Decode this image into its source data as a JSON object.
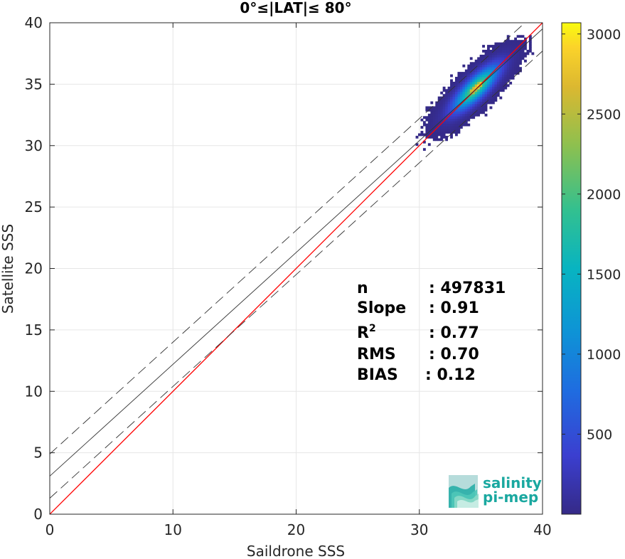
{
  "chart_data": {
    "type": "heatmap",
    "title": "0°≤|LAT|≤ 80°",
    "xlabel": "Saildrone SSS",
    "ylabel": "Satellite SSS",
    "xlim": [
      0,
      40
    ],
    "ylim": [
      0,
      40
    ],
    "xticks": [
      "0",
      "10",
      "20",
      "30",
      "40"
    ],
    "yticks": [
      "0",
      "5",
      "10",
      "15",
      "20",
      "25",
      "30",
      "35",
      "40"
    ],
    "grid": true,
    "colorbar": {
      "ticks": [
        "500",
        "1000",
        "1500",
        "2000",
        "2500",
        "3000"
      ],
      "tick_values": [
        500,
        1000,
        1500,
        2000,
        2500,
        3000
      ],
      "range": [
        0,
        3070
      ],
      "colormap": "parula"
    },
    "lines": [
      {
        "kind": "one-to-one",
        "color": "#ff0000",
        "intercept": 0,
        "slope": 1
      },
      {
        "kind": "regression",
        "color": "#333333",
        "intercept": 3.1,
        "slope": 0.91
      },
      {
        "kind": "upper-bound",
        "color": "#333333",
        "dashed": true,
        "intercept": 4.9,
        "slope": 0.91
      },
      {
        "kind": "lower-bound",
        "color": "#333333",
        "dashed": true,
        "intercept": 1.3,
        "slope": 0.91
      }
    ],
    "density": {
      "center": [
        34.5,
        34.6
      ],
      "peak_count": 3050,
      "x_extent": [
        27.7,
        39.2
      ],
      "y_extent": [
        29.6,
        39.0
      ]
    },
    "stats": [
      {
        "name": "n",
        "sep": ": ",
        "value": "497831"
      },
      {
        "name": "Slope",
        "sep": ": ",
        "value": "0.91"
      },
      {
        "name": "R",
        "sup": "2",
        "sep": ": ",
        "value": "0.77"
      },
      {
        "name": "RMS",
        "sep": ": ",
        "value": "0.70"
      },
      {
        "name": "BIAS",
        "sep": ": ",
        "value": "0.12"
      }
    ]
  },
  "logo": {
    "line1": "salinity",
    "line2": "pi-mep",
    "color": "#1aa8a0"
  }
}
